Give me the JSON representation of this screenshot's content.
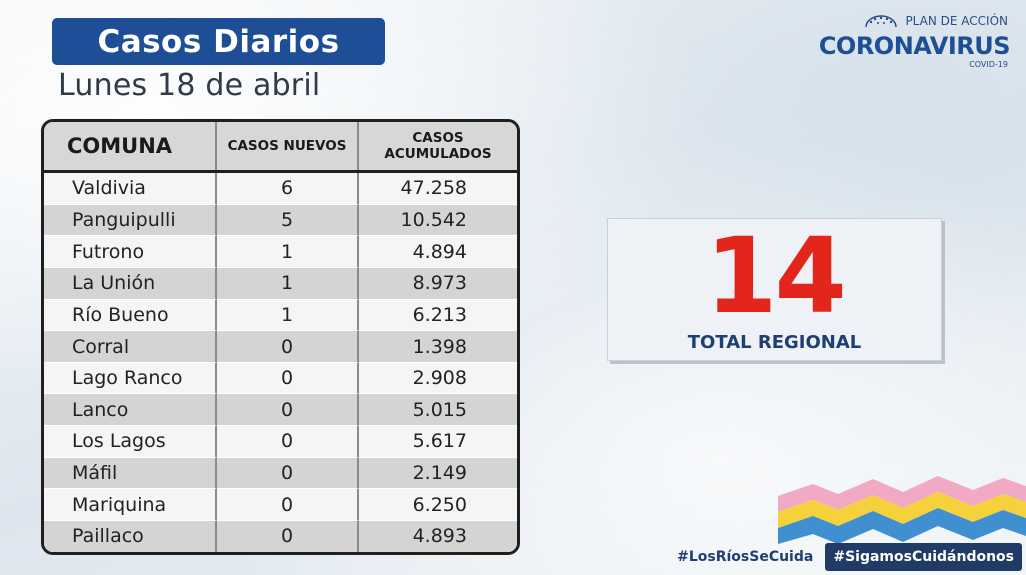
{
  "header": {
    "title": "Casos Diarios",
    "date": "Lunes 18 de abril"
  },
  "brand": {
    "top_text": "PLAN DE ACCIÓN",
    "main_text": "CORONAVIRUS",
    "sub_text": "COVID-19",
    "icon": "government-logo-icon"
  },
  "table": {
    "headers": {
      "comuna": "COMUNA",
      "nuevos": "CASOS NUEVOS",
      "acumulados_line1": "CASOS",
      "acumulados_line2": "ACUMULADOS"
    },
    "rows": [
      {
        "comuna": "Valdivia",
        "nuevos": "6",
        "acumulados": "47.258"
      },
      {
        "comuna": "Panguipulli",
        "nuevos": "5",
        "acumulados": "10.542"
      },
      {
        "comuna": "Futrono",
        "nuevos": "1",
        "acumulados": "4.894"
      },
      {
        "comuna": "La Unión",
        "nuevos": "1",
        "acumulados": "8.973"
      },
      {
        "comuna": "Río Bueno",
        "nuevos": "1",
        "acumulados": "6.213"
      },
      {
        "comuna": "Corral",
        "nuevos": "0",
        "acumulados": "1.398"
      },
      {
        "comuna": "Lago Ranco",
        "nuevos": "0",
        "acumulados": "2.908"
      },
      {
        "comuna": "Lanco",
        "nuevos": "0",
        "acumulados": "5.015"
      },
      {
        "comuna": "Los Lagos",
        "nuevos": "0",
        "acumulados": "5.617"
      },
      {
        "comuna": "Máfil",
        "nuevos": "0",
        "acumulados": "2.149"
      },
      {
        "comuna": "Mariquina",
        "nuevos": "0",
        "acumulados": "6.250"
      },
      {
        "comuna": "Paillaco",
        "nuevos": "0",
        "acumulados": "4.893"
      }
    ]
  },
  "total": {
    "value": "14",
    "label": "TOTAL REGIONAL",
    "color": "#e2261c"
  },
  "footer": {
    "hashtag1": "#LosRíosSeCuida",
    "hashtag2": "#SigamosCuidándonos"
  },
  "colors": {
    "brand_blue": "#1e4f96",
    "zigzag": [
      "#f2a9c4",
      "#f5d23b",
      "#3f8fd1"
    ]
  }
}
